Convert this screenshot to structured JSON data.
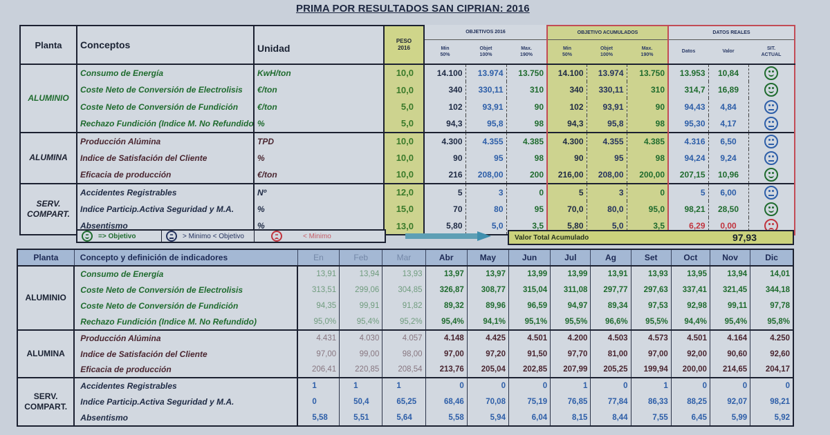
{
  "title": "PRIMA POR RESULTADOS SAN CIPRIAN: 2016",
  "top_table": {
    "headers": {
      "planta": "Planta",
      "conceptos": "Conceptos",
      "unidad": "Unidad",
      "peso": "PESO",
      "peso_year": "2016",
      "objetivos": "OBJETIVOS 2016",
      "objetivo_acumulados": "OBJETIVO ACUMULADOS",
      "datos_reales": "DATOS REALES",
      "min": "Min",
      "min_pct": "50%",
      "objet": "Objet",
      "objet_pct": "100%",
      "max": "Max.",
      "max_pct": "190%",
      "datos": "Datos",
      "valor": "Valor",
      "sit": "SIT.",
      "actual": "ACTUAL"
    },
    "groups": [
      {
        "planta": "ALUMINIO",
        "rows": [
          {
            "concepto": "Consumo de Energía",
            "unidad": "KwH/ton",
            "peso": "10,0",
            "obj_min": "14.100",
            "obj_objet": "13.974",
            "obj_max": "13.750",
            "acum_min": "14.100",
            "acum_objet": "13.974",
            "acum_max": "13.750",
            "datos": "13.953",
            "valor": "10,84",
            "sit": "happy"
          },
          {
            "concepto": "Coste Neto de Conversión de Electrolisis",
            "unidad": "€/ton",
            "peso": "10,0",
            "obj_min": "340",
            "obj_objet": "330,11",
            "obj_max": "310",
            "acum_min": "340",
            "acum_objet": "330,11",
            "acum_max": "310",
            "datos": "314,7",
            "valor": "16,89",
            "sit": "happy"
          },
          {
            "concepto": "Coste Neto de Conversión de Fundición",
            "unidad": "€/ton",
            "peso": "5,0",
            "obj_min": "102",
            "obj_objet": "93,91",
            "obj_max": "90",
            "acum_min": "102",
            "acum_objet": "93,91",
            "acum_max": "90",
            "datos": "94,43",
            "valor": "4,84",
            "sit": "neutral"
          },
          {
            "concepto": "Rechazo Fundición (Indice M. No Refundido",
            "unidad": "%",
            "peso": "5,0",
            "obj_min": "94,3",
            "obj_objet": "95,8",
            "obj_max": "98",
            "acum_min": "94,3",
            "acum_objet": "95,8",
            "acum_max": "98",
            "datos": "95,30",
            "valor": "4,17",
            "sit": "neutral"
          }
        ]
      },
      {
        "planta": "ALUMINA",
        "rows": [
          {
            "concepto": "Producción Alúmina",
            "unidad": "TPD",
            "peso": "10,0",
            "obj_min": "4.300",
            "obj_objet": "4.355",
            "obj_max": "4.385",
            "acum_min": "4.300",
            "acum_objet": "4.355",
            "acum_max": "4.385",
            "datos": "4.316",
            "valor": "6,50",
            "sit": "neutral"
          },
          {
            "concepto": "Indice de Satisfación del Cliente",
            "unidad": "%",
            "peso": "10,0",
            "obj_min": "90",
            "obj_objet": "95",
            "obj_max": "98",
            "acum_min": "90",
            "acum_objet": "95",
            "acum_max": "98",
            "datos": "94,24",
            "valor": "9,24",
            "sit": "neutral"
          },
          {
            "concepto": "Eficacia de producción",
            "unidad": "€/ton",
            "peso": "10,0",
            "obj_min": "216",
            "obj_objet": "208,00",
            "obj_max": "200",
            "acum_min": "216,00",
            "acum_objet": "208,00",
            "acum_max": "200,00",
            "datos": "207,15",
            "valor": "10,96",
            "sit": "happy"
          }
        ]
      },
      {
        "planta": "SERV. COMPART.",
        "rows": [
          {
            "concepto": "Accidentes Registrables",
            "unidad": "Nº",
            "peso": "12,0",
            "obj_min": "5",
            "obj_objet": "3",
            "obj_max": "0",
            "acum_min": "5",
            "acum_objet": "3",
            "acum_max": "0",
            "datos": "5",
            "valor": "6,00",
            "sit": "neutral"
          },
          {
            "concepto": "Indice Particip.Activa Seguridad y M.A.",
            "unidad": "%",
            "peso": "15,0",
            "obj_min": "70",
            "obj_objet": "80",
            "obj_max": "95",
            "acum_min": "70,0",
            "acum_objet": "80,0",
            "acum_max": "95,0",
            "datos": "98,21",
            "valor": "28,50",
            "sit": "happy"
          },
          {
            "concepto": "Absentismo",
            "unidad": "%",
            "peso": "13,0",
            "obj_min": "5,80",
            "obj_objet": "5,0",
            "obj_max": "3,5",
            "acum_min": "5,80",
            "acum_objet": "5,0",
            "acum_max": "3,5",
            "datos": "6,29",
            "valor": "0,00",
            "sit": "sad"
          }
        ]
      }
    ]
  },
  "legend": {
    "objetivo": "=> Objetivo",
    "minimo_objetivo": "> Minimo < Objetivo",
    "minimo": "< Minimo"
  },
  "total": {
    "label": "Valor Total  Acumulado",
    "value": "97,93"
  },
  "bottom_table": {
    "headers": {
      "planta": "Planta",
      "concepto": "Concepto y definición de indicadores",
      "months": [
        "En",
        "Feb",
        "Mar",
        "Abr",
        "May",
        "Jun",
        "Jul",
        "Ag",
        "Set",
        "Oct",
        "Nov",
        "Dic"
      ]
    },
    "groups": [
      {
        "planta": "ALUMINIO",
        "rows": [
          {
            "concepto": "Consumo de Energía",
            "values": [
              "13,91",
              "13,94",
              "13,93",
              "13,97",
              "13,97",
              "13,99",
              "13,99",
              "13,91",
              "13,93",
              "13,95",
              "13,94",
              "14,01"
            ]
          },
          {
            "concepto": "Coste Neto de Conversión de Electrolisis",
            "values": [
              "313,51",
              "299,06",
              "304,85",
              "326,87",
              "308,77",
              "315,04",
              "311,08",
              "297,77",
              "297,63",
              "337,41",
              "321,45",
              "344,18"
            ]
          },
          {
            "concepto": "Coste Neto de Conversión de Fundición",
            "values": [
              "94,35",
              "99,91",
              "91,82",
              "89,32",
              "89,96",
              "96,59",
              "94,97",
              "89,34",
              "97,53",
              "92,98",
              "99,11",
              "97,78"
            ]
          },
          {
            "concepto": "Rechazo Fundición (Indice M. No Refundido)",
            "values": [
              "95,0%",
              "95,4%",
              "95,2%",
              "95,4%",
              "94,1%",
              "95,1%",
              "95,5%",
              "96,6%",
              "95,5%",
              "94,4%",
              "95,4%",
              "95,8%"
            ]
          }
        ]
      },
      {
        "planta": "ALUMINA",
        "rows": [
          {
            "concepto": "Producción Alúmina",
            "values": [
              "4.431",
              "4.030",
              "4.057",
              "4.148",
              "4.425",
              "4.501",
              "4.200",
              "4.503",
              "4.573",
              "4.501",
              "4.164",
              "4.250"
            ]
          },
          {
            "concepto": "Indice de Satisfación del Cliente",
            "values": [
              "97,00",
              "99,00",
              "98,00",
              "97,00",
              "97,20",
              "91,50",
              "97,70",
              "81,00",
              "97,00",
              "92,00",
              "90,60",
              "92,60"
            ]
          },
          {
            "concepto": "Eficacia de producción",
            "values": [
              "206,41",
              "220,85",
              "208,54",
              "213,76",
              "205,04",
              "202,85",
              "207,99",
              "205,25",
              "199,94",
              "200,00",
              "214,65",
              "204,17"
            ]
          }
        ]
      },
      {
        "planta": "SERV. COMPART.",
        "rows": [
          {
            "concepto": "Accidentes Registrables",
            "values": [
              "1",
              "1",
              "1",
              "0",
              "0",
              "0",
              "1",
              "0",
              "1",
              "0",
              "0",
              "0"
            ]
          },
          {
            "concepto": "Indice Particip.Activa Seguridad y M.A.",
            "values": [
              "0",
              "50,4",
              "65,25",
              "68,46",
              "70,08",
              "75,19",
              "76,85",
              "77,84",
              "86,33",
              "88,25",
              "92,07",
              "98,21"
            ]
          },
          {
            "concepto": "Absentismo",
            "values": [
              "5,58",
              "5,51",
              "5,64",
              "5,58",
              "5,94",
              "6,04",
              "8,15",
              "8,44",
              "7,55",
              "6,45",
              "5,99",
              "5,92"
            ]
          }
        ]
      }
    ]
  },
  "colors": {
    "objetivo_green": "#1f6b2e",
    "minimo_blue": "#2d5ea8",
    "below_min_red": "#c0343e",
    "highlight_yellow": "#cdd38f",
    "header_blue": "#a4b8d4"
  }
}
